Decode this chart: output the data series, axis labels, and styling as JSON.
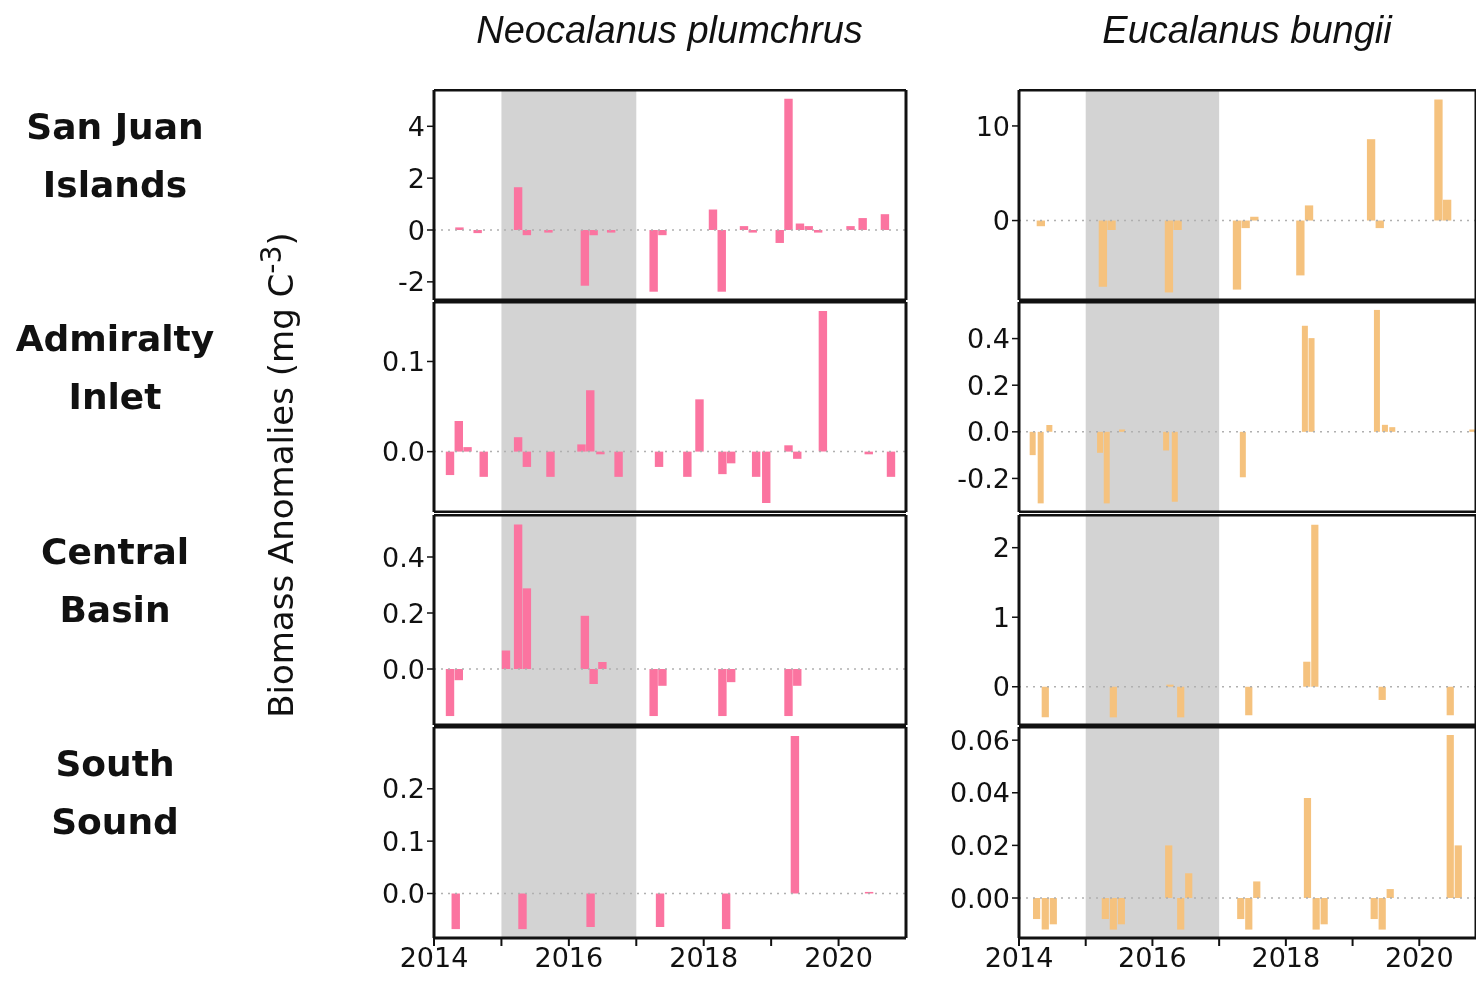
{
  "chart_data": [
    {
      "type": "bar",
      "title": "Neocalanus plumchrus",
      "ylabel": "Biomass Anomalies  (mg C$^{-3}$)",
      "annotations": [
        "San Juan Islands"
      ],
      "color": "#fb74a0",
      "tick_labels": "y",
      "x": [
        2014.38,
        2014.65,
        2015.25,
        2015.38,
        2015.7,
        2016.24,
        2016.37,
        2016.63,
        2017.26,
        2017.39,
        2018.14,
        2018.27,
        2018.6,
        2018.73,
        2019.13,
        2019.26,
        2019.43,
        2019.56,
        2019.7,
        2020.18,
        2020.36,
        2020.69
      ],
      "values": [
        0.1,
        -0.12,
        1.65,
        -0.2,
        -0.1,
        -2.15,
        -0.2,
        -0.1,
        -2.38,
        -0.2,
        0.79,
        -2.38,
        0.15,
        -0.1,
        -0.5,
        5.06,
        0.25,
        0.15,
        -0.1,
        0.15,
        0.46,
        0.61
      ],
      "xlim": [
        2014,
        2021
      ],
      "ylim": [
        -2.7,
        5.4
      ],
      "yticks": [
        -2,
        0,
        2,
        4
      ],
      "bands": [
        {
          "axis": "x",
          "from": 2015,
          "to": 2017,
          "color": "#d3d3d3"
        }
      ],
      "ref_lines": [
        {
          "axis": "y",
          "value": 0,
          "color": "#b0b0b0",
          "line_style": "dotted"
        }
      ]
    },
    {
      "type": "bar",
      "title": "Eucalanus bungii",
      "color": "#f5c27e",
      "tick_labels": "y",
      "x": [
        2014.33,
        2015.26,
        2015.39,
        2016.25,
        2016.38,
        2017.27,
        2017.4,
        2017.53,
        2018.22,
        2018.35,
        2019.28,
        2019.41,
        2020.29,
        2020.42
      ],
      "values": [
        -0.6,
        -7.0,
        -1.0,
        -7.6,
        -1.0,
        -7.3,
        -0.8,
        0.4,
        -5.8,
        1.6,
        8.6,
        -0.8,
        12.8,
        2.2
      ],
      "xlim": [
        2014,
        2020.85
      ],
      "ylim": [
        -8.4,
        13.8
      ],
      "yticks": [
        0,
        10
      ],
      "bands": [
        {
          "axis": "x",
          "from": 2015,
          "to": 2017,
          "color": "#d3d3d3"
        }
      ],
      "ref_lines": [
        {
          "axis": "y",
          "value": 0,
          "color": "#b0b0b0",
          "line_style": "dotted"
        }
      ]
    },
    {
      "type": "bar",
      "annotations": [
        "Admiralty Inlet"
      ],
      "color": "#fb74a0",
      "tick_labels": "y",
      "x": [
        2014.24,
        2014.37,
        2014.5,
        2014.74,
        2015.25,
        2015.38,
        2015.73,
        2016.19,
        2016.32,
        2016.47,
        2016.74,
        2017.34,
        2017.76,
        2017.94,
        2018.28,
        2018.41,
        2018.78,
        2018.93,
        2019.26,
        2019.39,
        2019.77,
        2020.45,
        2020.78
      ],
      "values": [
        -0.026,
        0.034,
        0.005,
        -0.028,
        0.016,
        -0.017,
        -0.028,
        0.008,
        0.068,
        -0.003,
        -0.028,
        -0.017,
        -0.028,
        0.058,
        -0.025,
        -0.013,
        -0.028,
        -0.057,
        0.007,
        -0.008,
        0.156,
        -0.003,
        -0.028
      ],
      "xlim": [
        2014,
        2021
      ],
      "ylim": [
        -0.067,
        0.166
      ],
      "yticks": [
        {
          "value": 0,
          "label": "0.0"
        },
        {
          "value": 0.1,
          "label": "0.1"
        }
      ],
      "bands": [
        {
          "axis": "x",
          "from": 2015,
          "to": 2017,
          "color": "#d3d3d3"
        }
      ],
      "ref_lines": [
        {
          "axis": "y",
          "value": 0,
          "color": "#b0b0b0",
          "line_style": "dotted"
        }
      ]
    },
    {
      "type": "bar",
      "color": "#f5c27e",
      "tick_labels": "y",
      "x": [
        2014.21,
        2014.33,
        2014.46,
        2015.22,
        2015.32,
        2015.55,
        2016.21,
        2016.34,
        2017.36,
        2018.29,
        2018.39,
        2019.37,
        2019.49,
        2019.6,
        2020.8
      ],
      "values": [
        -0.1,
        -0.307,
        0.029,
        -0.09,
        -0.307,
        0.01,
        -0.08,
        -0.3,
        -0.195,
        0.455,
        0.402,
        0.523,
        0.03,
        0.02,
        0.01
      ],
      "xlim": [
        2014,
        2020.85
      ],
      "ylim": [
        -0.344,
        0.557
      ],
      "yticks": [
        {
          "value": -0.2,
          "label": "-0.2"
        },
        {
          "value": 0,
          "label": "0.0"
        },
        {
          "value": 0.2,
          "label": "0.2"
        },
        {
          "value": 0.4,
          "label": "0.4"
        }
      ],
      "bands": [
        {
          "axis": "x",
          "from": 2015,
          "to": 2017,
          "color": "#d3d3d3"
        }
      ],
      "ref_lines": [
        {
          "axis": "y",
          "value": 0,
          "color": "#b0b0b0",
          "line_style": "dotted"
        }
      ]
    },
    {
      "type": "bar",
      "annotations": [
        "Central Basin"
      ],
      "color": "#fb74a0",
      "tick_labels": "y",
      "x": [
        2014.24,
        2014.37,
        2015.07,
        2015.25,
        2015.38,
        2016.24,
        2016.37,
        2016.5,
        2017.26,
        2017.39,
        2018.28,
        2018.41,
        2019.26,
        2019.39
      ],
      "values": [
        -0.168,
        -0.04,
        0.066,
        0.516,
        0.288,
        0.19,
        -0.054,
        0.025,
        -0.168,
        -0.06,
        -0.168,
        -0.047,
        -0.168,
        -0.06
      ],
      "xlim": [
        2014,
        2021
      ],
      "ylim": [
        -0.2,
        0.55
      ],
      "yticks": [
        {
          "value": 0,
          "label": "0.0"
        },
        {
          "value": 0.2,
          "label": "0.2"
        },
        {
          "value": 0.4,
          "label": "0.4"
        }
      ],
      "bands": [
        {
          "axis": "x",
          "from": 2015,
          "to": 2017,
          "color": "#d3d3d3"
        }
      ],
      "ref_lines": [
        {
          "axis": "y",
          "value": 0,
          "color": "#b0b0b0",
          "line_style": "dotted"
        }
      ]
    },
    {
      "type": "bar",
      "color": "#f5c27e",
      "tick_labels": "y",
      "x": [
        2014.4,
        2015.42,
        2016.27,
        2016.43,
        2017.45,
        2018.32,
        2018.44,
        2019.45,
        2020.47
      ],
      "values": [
        -0.44,
        -0.44,
        0.03,
        -0.44,
        -0.41,
        0.36,
        2.33,
        -0.19,
        -0.41
      ],
      "xlim": [
        2014,
        2020.85
      ],
      "ylim": [
        -0.55,
        2.47
      ],
      "yticks": [
        0,
        1,
        2
      ],
      "bands": [
        {
          "axis": "x",
          "from": 2015,
          "to": 2017,
          "color": "#d3d3d3"
        }
      ],
      "ref_lines": [
        {
          "axis": "y",
          "value": 0,
          "color": "#b0b0b0",
          "line_style": "dotted"
        }
      ]
    },
    {
      "type": "bar",
      "annotations": [
        "South Sound"
      ],
      "color": "#fb74a0",
      "x": [
        2014.32,
        2015.31,
        2016.32,
        2017.35,
        2018.33,
        2019.35,
        2020.45
      ],
      "values": [
        -0.068,
        -0.068,
        -0.064,
        -0.064,
        -0.068,
        0.301,
        0.003
      ],
      "xlim": [
        2014,
        2021
      ],
      "xticks": [
        2014,
        {
          "value": 2015,
          "label": null
        },
        2016,
        {
          "value": 2017,
          "label": null
        },
        2018,
        {
          "value": 2019,
          "label": null
        },
        2020
      ],
      "ylim": [
        -0.085,
        0.318
      ],
      "yticks": [
        {
          "value": 0,
          "label": "0.0"
        },
        {
          "value": 0.1,
          "label": "0.1"
        },
        {
          "value": 0.2,
          "label": "0.2"
        }
      ],
      "bands": [
        {
          "axis": "x",
          "from": 2015,
          "to": 2017,
          "color": "#d3d3d3"
        }
      ],
      "ref_lines": [
        {
          "axis": "y",
          "value": 0,
          "color": "#b0b0b0",
          "line_style": "dotted"
        }
      ]
    },
    {
      "type": "bar",
      "color": "#f5c27e",
      "x": [
        2014.27,
        2014.4,
        2014.52,
        2015.3,
        2015.42,
        2015.54,
        2016.25,
        2016.43,
        2016.55,
        2017.33,
        2017.45,
        2017.57,
        2018.33,
        2018.46,
        2018.58,
        2019.33,
        2019.45,
        2019.57,
        2020.47,
        2020.59
      ],
      "values": [
        -0.008,
        -0.012,
        -0.01,
        -0.008,
        -0.012,
        -0.01,
        0.02,
        -0.012,
        0.0094,
        -0.008,
        -0.012,
        0.0063,
        0.038,
        -0.012,
        -0.01,
        -0.008,
        -0.012,
        0.0034,
        0.062,
        0.02
      ],
      "xlim": [
        2014,
        2020.85
      ],
      "xticks": [
        2014,
        {
          "value": 2015,
          "label": null
        },
        2016,
        {
          "value": 2017,
          "label": null
        },
        2018,
        {
          "value": 2019,
          "label": null
        },
        2020
      ],
      "ylim": [
        -0.0152,
        0.065
      ],
      "yticks": [
        {
          "value": 0,
          "label": "0.00"
        },
        {
          "value": 0.02,
          "label": "0.02"
        },
        {
          "value": 0.04,
          "label": "0.04"
        },
        {
          "value": 0.06,
          "label": "0.06"
        }
      ],
      "bands": [
        {
          "axis": "x",
          "from": 2015,
          "to": 2017,
          "color": "#d3d3d3"
        }
      ],
      "ref_lines": [
        {
          "axis": "y",
          "value": 0,
          "color": "#b0b0b0",
          "line_style": "dotted"
        }
      ]
    }
  ]
}
